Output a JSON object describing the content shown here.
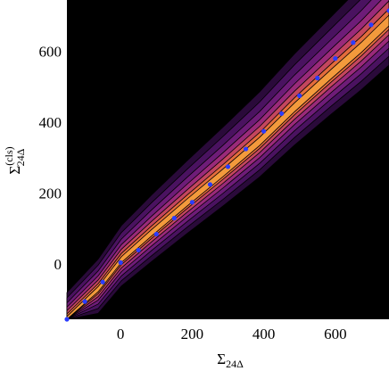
{
  "chart_data": {
    "type": "scatter",
    "x_label": {
      "base": "Σ",
      "sub": "24Δ"
    },
    "y_label": {
      "base": "Σ",
      "sup": "(cls)",
      "sub": "24Δ"
    },
    "xlim": [
      -150,
      750
    ],
    "ylim": [
      -150,
      750
    ],
    "xticks": [
      0,
      200,
      400,
      600
    ],
    "yticks": [
      0,
      200,
      400,
      600
    ],
    "series": [
      {
        "color": "#2b3cff",
        "x": [
          -150,
          -100,
          -50,
          0,
          50,
          100,
          150,
          200,
          250,
          300,
          350,
          400,
          450,
          500,
          550,
          600,
          650,
          700,
          750
        ],
        "values": [
          -150,
          -100,
          -45,
          10,
          45,
          90,
          135,
          180,
          230,
          280,
          330,
          380,
          430,
          480,
          530,
          585,
          630,
          680,
          720
        ]
      }
    ]
  }
}
